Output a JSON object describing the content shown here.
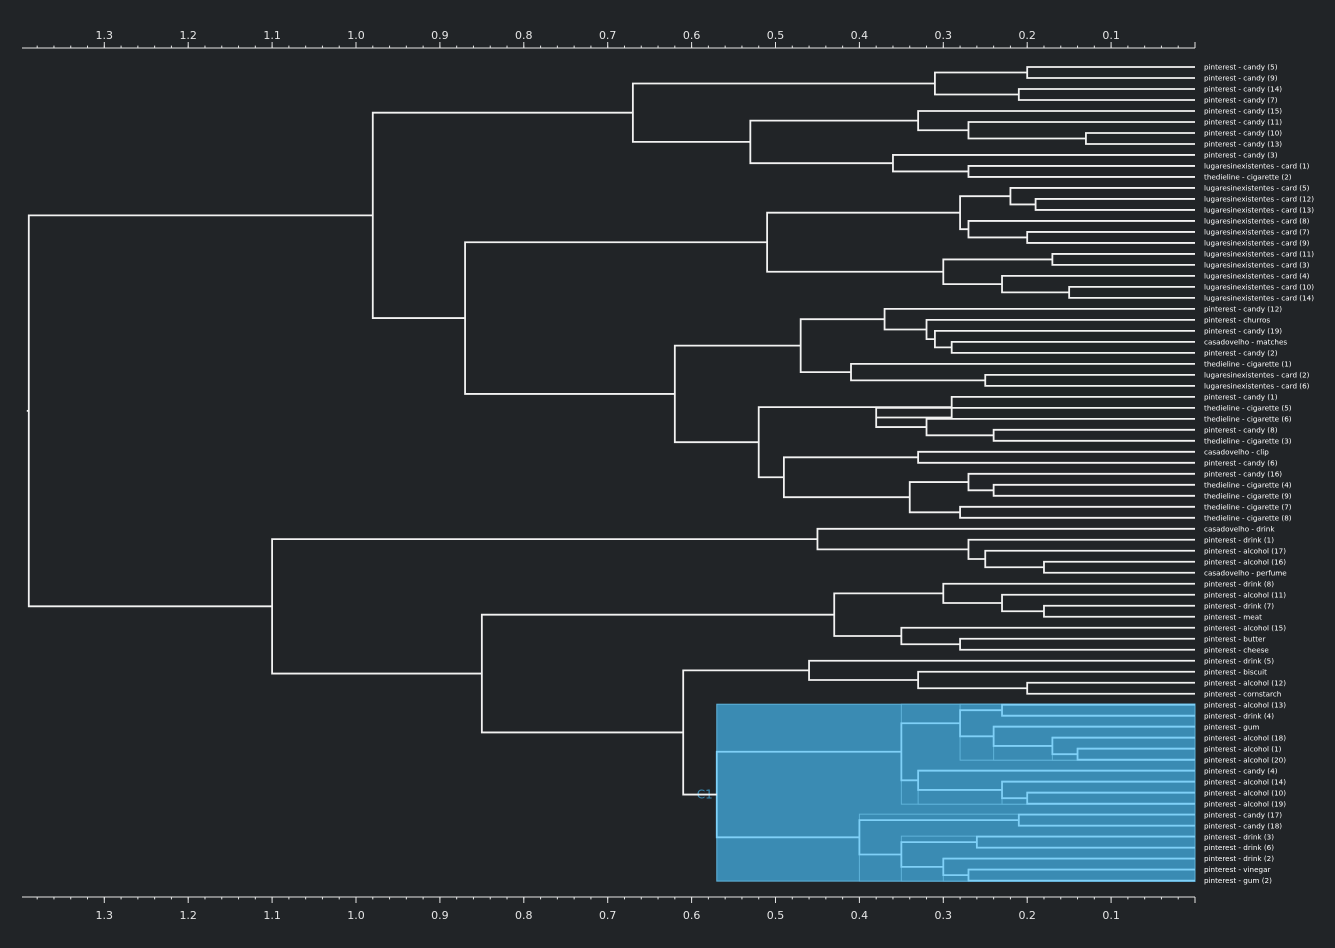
{
  "axis": {
    "ticks": [
      "1.3",
      "1.2",
      "1.1",
      "1.0",
      "0.9",
      "0.8",
      "0.7",
      "0.6",
      "0.5",
      "0.4",
      "0.3",
      "0.2",
      "0.1"
    ]
  },
  "cluster": {
    "label": "C1",
    "color": "#3a8bb3"
  },
  "leaves": [
    "pinterest - candy (5)",
    "pinterest - candy (9)",
    "pinterest - candy (14)",
    "pinterest - candy (7)",
    "pinterest - candy (15)",
    "pinterest - candy (11)",
    "pinterest - candy (10)",
    "pinterest - candy (13)",
    "pinterest - candy (3)",
    "lugaresinexistentes - card (1)",
    "thedieline - cigarette (2)",
    "lugaresinexistentes - card (5)",
    "lugaresinexistentes - card (12)",
    "lugaresinexistentes - card (13)",
    "lugaresinexistentes - card (8)",
    "lugaresinexistentes - card (7)",
    "lugaresinexistentes - card (9)",
    "lugaresinexistentes - card (11)",
    "lugaresinexistentes - card (3)",
    "lugaresinexistentes - card (4)",
    "lugaresinexistentes - card (10)",
    "lugaresinexistentes - card (14)",
    "pinterest - candy (12)",
    "pinterest - churros",
    "pinterest - candy (19)",
    "casadovelho - matches",
    "pinterest - candy (2)",
    "thedieline - cigarette (1)",
    "lugaresinexistentes - card (2)",
    "lugaresinexistentes - card (6)",
    "pinterest - candy (1)",
    "thedieline - cigarette (5)",
    "thedieline - cigarette (6)",
    "pinterest - candy (8)",
    "thedieline - cigarette (3)",
    "casadovelho - clip",
    "pinterest - candy (6)",
    "pinterest - candy (16)",
    "thedieline - cigarette (4)",
    "thedieline - cigarette (9)",
    "thedieline - cigarette (7)",
    "thedieline - cigarette (8)",
    "casadovelho - drink",
    "pinterest - drink (1)",
    "pinterest - alcohol (17)",
    "pinterest - alcohol (16)",
    "casadovelho - perfume",
    "pinterest - drink (8)",
    "pinterest - alcohol (11)",
    "pinterest - drink (7)",
    "pinterest - meat",
    "pinterest - alcohol (15)",
    "pinterest - butter",
    "pinterest - cheese",
    "pinterest - drink (5)",
    "pinterest - biscuit",
    "pinterest - alcohol (12)",
    "pinterest - cornstarch",
    "pinterest - alcohol (13)",
    "pinterest - drink (4)",
    "pinterest - gum",
    "pinterest - alcohol (18)",
    "pinterest - alcohol (1)",
    "pinterest - alcohol (20)",
    "pinterest - candy (4)",
    "pinterest - alcohol (14)",
    "pinterest - alcohol (10)",
    "pinterest - alcohol (19)",
    "pinterest - candy (17)",
    "pinterest - candy (18)",
    "pinterest - drink (3)",
    "pinterest - drink (6)",
    "pinterest - drink (2)",
    "pinterest - vinegar",
    "pinterest - gum (2)"
  ],
  "merges": [
    [
      0,
      1,
      0.2
    ],
    [
      2,
      3,
      0.21
    ],
    [
      "m0",
      "m1",
      0.31
    ],
    [
      6,
      7,
      0.13
    ],
    [
      5,
      "m3",
      0.27
    ],
    [
      4,
      "m4",
      0.33
    ],
    [
      9,
      10,
      0.27
    ],
    [
      8,
      "m6",
      0.36
    ],
    [
      "m5",
      "m7",
      0.53
    ],
    [
      "m2",
      "m8",
      0.67
    ],
    [
      12,
      13,
      0.19
    ],
    [
      11,
      "m10",
      0.22
    ],
    [
      15,
      16,
      0.2
    ],
    [
      14,
      "m12",
      0.27
    ],
    [
      "m11",
      "m13",
      0.28
    ],
    [
      17,
      18,
      0.17
    ],
    [
      20,
      21,
      0.15
    ],
    [
      19,
      "m16",
      0.23
    ],
    [
      "m15",
      "m17",
      0.3
    ],
    [
      "m14",
      "m18",
      0.51
    ],
    [
      25,
      26,
      0.29
    ],
    [
      24,
      "m20",
      0.31
    ],
    [
      23,
      "m21",
      0.32
    ],
    [
      22,
      "m22",
      0.37
    ],
    [
      28,
      29,
      0.25
    ],
    [
      27,
      "m24",
      0.41
    ],
    [
      "m23",
      "m25",
      0.47
    ],
    [
      33,
      34,
      0.24
    ],
    [
      32,
      "m27",
      0.32
    ],
    [
      31,
      "m28",
      0.38
    ],
    [
      30,
      "m29",
      0.29
    ],
    [
      35,
      36,
      0.33
    ],
    [
      38,
      39,
      0.24
    ],
    [
      37,
      "m32",
      0.27
    ],
    [
      40,
      41,
      0.28
    ],
    [
      "m33",
      "m34",
      0.34
    ],
    [
      "m31",
      "m35",
      0.49
    ],
    [
      "m30",
      "m36",
      0.52
    ],
    [
      "m26",
      "m37",
      0.62
    ],
    [
      "m19",
      "m38",
      0.87
    ],
    [
      "m9",
      "m39",
      0.98
    ],
    [
      45,
      46,
      0.18
    ],
    [
      44,
      "m41",
      0.25
    ],
    [
      43,
      "m42",
      0.27
    ],
    [
      42,
      "m43",
      0.45
    ],
    [
      49,
      50,
      0.18
    ],
    [
      48,
      "m45",
      0.23
    ],
    [
      47,
      "m46",
      0.3
    ],
    [
      52,
      53,
      0.28
    ],
    [
      51,
      "m48",
      0.35
    ],
    [
      "m47",
      "m49",
      0.43
    ],
    [
      56,
      57,
      0.2
    ],
    [
      55,
      "m51",
      0.33
    ],
    [
      54,
      "m52",
      0.46
    ],
    [
      58,
      59,
      0.23
    ],
    [
      62,
      63,
      0.14
    ],
    [
      61,
      "m55",
      0.17
    ],
    [
      60,
      "m56",
      0.24
    ],
    [
      "m54",
      "m57",
      0.28
    ],
    [
      66,
      67,
      0.2
    ],
    [
      65,
      "m59",
      0.23
    ],
    [
      64,
      "m60",
      0.33
    ],
    [
      "m58",
      "m61",
      0.35
    ],
    [
      68,
      69,
      0.21
    ],
    [
      70,
      71,
      0.26
    ],
    [
      73,
      74,
      0.27
    ],
    [
      72,
      "m65",
      0.3
    ],
    [
      "m64",
      "m66",
      0.35
    ],
    [
      "m63",
      "m67",
      0.4
    ],
    [
      "m62",
      "m68",
      0.57
    ],
    [
      "m53",
      "m69",
      0.61
    ],
    [
      "m50",
      "m70",
      0.85
    ],
    [
      "m44",
      "m71",
      1.1
    ],
    [
      "m40",
      "m72",
      1.39
    ]
  ],
  "selected_cluster_root": "m69"
}
